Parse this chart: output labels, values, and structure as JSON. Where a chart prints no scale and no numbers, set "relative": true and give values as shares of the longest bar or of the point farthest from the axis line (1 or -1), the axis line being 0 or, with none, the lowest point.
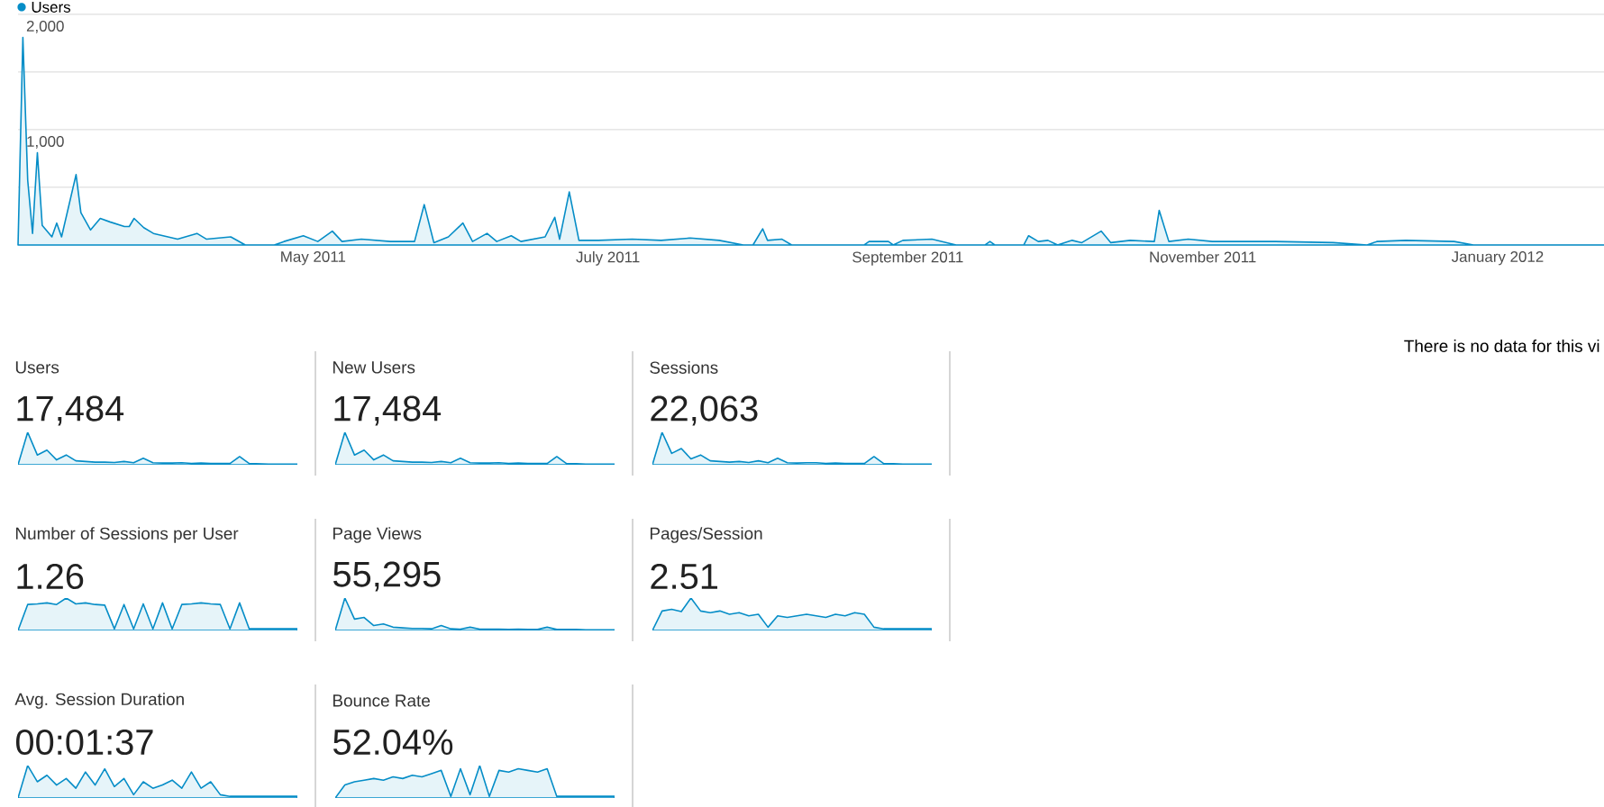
{
  "chart_data": [
    {
      "type": "area",
      "x": [
        "2011-03-01",
        "2011-03-02",
        "2011-03-03",
        "2011-03-04",
        "2011-03-05",
        "2011-03-06",
        "2011-03-08",
        "2011-03-09",
        "2011-03-10",
        "2011-03-13",
        "2011-03-14",
        "2011-03-16",
        "2011-03-18",
        "2011-03-20",
        "2011-03-23",
        "2011-03-24",
        "2011-03-25",
        "2011-03-27",
        "2011-03-29",
        "2011-04-03",
        "2011-04-07",
        "2011-04-09",
        "2011-04-14",
        "2011-04-17",
        "2011-04-23",
        "2011-04-25",
        "2011-04-29",
        "2011-05-02",
        "2011-05-05",
        "2011-05-07",
        "2011-05-11",
        "2011-05-17",
        "2011-05-22",
        "2011-05-24",
        "2011-05-26",
        "2011-05-29",
        "2011-06-01",
        "2011-06-03",
        "2011-06-06",
        "2011-06-08",
        "2011-06-11",
        "2011-06-13",
        "2011-06-18",
        "2011-06-20",
        "2011-06-21",
        "2011-06-23",
        "2011-06-25",
        "2011-06-29",
        "2011-07-06",
        "2011-07-12",
        "2011-07-18",
        "2011-07-24",
        "2011-07-29",
        "2011-07-31",
        "2011-08-02",
        "2011-08-03",
        "2011-08-06",
        "2011-08-08",
        "2011-08-23",
        "2011-08-24",
        "2011-08-28",
        "2011-08-29",
        "2011-08-31",
        "2011-09-06",
        "2011-09-11",
        "2011-09-17",
        "2011-09-18",
        "2011-09-19",
        "2011-09-25",
        "2011-09-26",
        "2011-09-28",
        "2011-09-30",
        "2011-10-02",
        "2011-10-05",
        "2011-10-07",
        "2011-10-11",
        "2011-10-13",
        "2011-10-17",
        "2011-10-22",
        "2011-10-23",
        "2011-10-25",
        "2011-10-29",
        "2011-11-03",
        "2011-11-16",
        "2011-11-28",
        "2011-12-05",
        "2011-12-07",
        "2011-12-13",
        "2011-12-23",
        "2011-12-27",
        "2012-01-23"
      ],
      "series": [
        {
          "name": "Users",
          "color": "#058dc7",
          "values": [
            0,
            1800,
            560,
            100,
            800,
            170,
            70,
            190,
            70,
            610,
            280,
            130,
            230,
            200,
            160,
            160,
            230,
            150,
            100,
            50,
            100,
            50,
            70,
            0,
            0,
            30,
            80,
            30,
            120,
            30,
            50,
            30,
            30,
            350,
            20,
            70,
            190,
            30,
            100,
            30,
            80,
            30,
            70,
            240,
            50,
            460,
            40,
            40,
            50,
            40,
            60,
            40,
            0,
            0,
            140,
            40,
            50,
            0,
            0,
            30,
            30,
            0,
            40,
            50,
            0,
            0,
            30,
            0,
            0,
            80,
            30,
            40,
            0,
            40,
            20,
            120,
            20,
            40,
            30,
            300,
            30,
            50,
            30,
            30,
            20,
            0,
            30,
            40,
            30,
            0,
            0
          ]
        }
      ],
      "xlim": [
        "2011-03-01",
        "2012-01-23"
      ],
      "xticks": [
        {
          "value": "2011-05-01",
          "label": "May 2011"
        },
        {
          "value": "2011-07-01",
          "label": "July 2011"
        },
        {
          "value": "2011-09-01",
          "label": "September 2011"
        },
        {
          "value": "2011-11-01",
          "label": "November 2011"
        },
        {
          "value": "2012-01-01",
          "label": "January 2012"
        }
      ],
      "ylim": [
        0,
        2000
      ],
      "yticks": [
        {
          "value": 0,
          "label": null
        },
        {
          "value": 500,
          "label": null
        },
        {
          "value": 1000,
          "label": "1,000"
        },
        {
          "value": 1500,
          "label": null
        },
        {
          "value": 2000,
          "label": "2,000"
        }
      ],
      "grid": "y",
      "legend": "top left",
      "annotations": [
        "There is no data for this vi"
      ]
    },
    {
      "type": "area",
      "title": "Users",
      "subtitle": "17,484",
      "relative": true,
      "categories": [
        null,
        null,
        null,
        null,
        null,
        null,
        null,
        null,
        null,
        null,
        null,
        null,
        null,
        null,
        null,
        null,
        null,
        null,
        null,
        null,
        null,
        null,
        null,
        null,
        null,
        null,
        null,
        null,
        null,
        null
      ],
      "series": [
        {
          "color": "#058dc7",
          "values": [
            0,
            1,
            0.3,
            0.45,
            0.15,
            0.3,
            0.12,
            0.1,
            0.08,
            0.08,
            0.07,
            0.1,
            0.06,
            0.2,
            0.06,
            0.05,
            0.05,
            0.06,
            0.04,
            0.05,
            0.04,
            0.04,
            0.04,
            0.25,
            0.04,
            0.03,
            0.02,
            0.02,
            0.02,
            0.02
          ]
        }
      ]
    },
    {
      "type": "area",
      "title": "New Users",
      "subtitle": "17,484",
      "relative": true,
      "categories": [
        null,
        null,
        null,
        null,
        null,
        null,
        null,
        null,
        null,
        null,
        null,
        null,
        null,
        null,
        null,
        null,
        null,
        null,
        null,
        null,
        null,
        null,
        null,
        null,
        null,
        null,
        null,
        null,
        null,
        null
      ],
      "series": [
        {
          "color": "#058dc7",
          "values": [
            0,
            1,
            0.3,
            0.45,
            0.15,
            0.3,
            0.12,
            0.1,
            0.08,
            0.08,
            0.07,
            0.1,
            0.06,
            0.2,
            0.06,
            0.05,
            0.05,
            0.06,
            0.04,
            0.05,
            0.04,
            0.04,
            0.04,
            0.25,
            0.04,
            0.03,
            0.02,
            0.02,
            0.02,
            0.02
          ]
        }
      ]
    },
    {
      "type": "area",
      "title": "Sessions",
      "subtitle": "22,063",
      "relative": true,
      "categories": [
        null,
        null,
        null,
        null,
        null,
        null,
        null,
        null,
        null,
        null,
        null,
        null,
        null,
        null,
        null,
        null,
        null,
        null,
        null,
        null,
        null,
        null,
        null,
        null,
        null,
        null,
        null,
        null,
        null,
        null
      ],
      "series": [
        {
          "color": "#058dc7",
          "values": [
            0,
            1,
            0.35,
            0.5,
            0.18,
            0.3,
            0.12,
            0.1,
            0.08,
            0.1,
            0.07,
            0.12,
            0.06,
            0.2,
            0.06,
            0.05,
            0.06,
            0.06,
            0.04,
            0.05,
            0.04,
            0.04,
            0.04,
            0.25,
            0.04,
            0.03,
            0.02,
            0.02,
            0.02,
            0.02
          ]
        }
      ]
    },
    {
      "type": "area",
      "title": "Number of Sessions per User",
      "subtitle": "1.26",
      "relative": true,
      "categories": [
        null,
        null,
        null,
        null,
        null,
        null,
        null,
        null,
        null,
        null,
        null,
        null,
        null,
        null,
        null,
        null,
        null,
        null,
        null,
        null,
        null,
        null,
        null,
        null,
        null,
        null,
        null,
        null,
        null,
        null
      ],
      "series": [
        {
          "color": "#058dc7",
          "values": [
            0,
            0.8,
            0.82,
            0.85,
            0.8,
            1,
            0.82,
            0.85,
            0.8,
            0.78,
            0.05,
            0.8,
            0.05,
            0.82,
            0.05,
            0.85,
            0.05,
            0.8,
            0.82,
            0.85,
            0.82,
            0.8,
            0.05,
            0.85,
            0.05,
            0.05,
            0.05,
            0.05,
            0.05,
            0.05
          ]
        }
      ]
    },
    {
      "type": "area",
      "title": "Page Views",
      "subtitle": "55,295",
      "relative": true,
      "categories": [
        null,
        null,
        null,
        null,
        null,
        null,
        null,
        null,
        null,
        null,
        null,
        null,
        null,
        null,
        null,
        null,
        null,
        null,
        null,
        null,
        null,
        null,
        null,
        null,
        null,
        null,
        null,
        null,
        null,
        null
      ],
      "series": [
        {
          "color": "#058dc7",
          "values": [
            0,
            1,
            0.35,
            0.4,
            0.15,
            0.2,
            0.1,
            0.08,
            0.06,
            0.06,
            0.05,
            0.15,
            0.05,
            0.04,
            0.1,
            0.04,
            0.04,
            0.04,
            0.03,
            0.04,
            0.03,
            0.03,
            0.1,
            0.03,
            0.03,
            0.03,
            0.02,
            0.02,
            0.02,
            0.02
          ]
        }
      ]
    },
    {
      "type": "area",
      "title": "Pages/Session",
      "subtitle": "2.51",
      "relative": true,
      "categories": [
        null,
        null,
        null,
        null,
        null,
        null,
        null,
        null,
        null,
        null,
        null,
        null,
        null,
        null,
        null,
        null,
        null,
        null,
        null,
        null,
        null,
        null,
        null,
        null,
        null,
        null,
        null,
        null,
        null,
        null
      ],
      "series": [
        {
          "color": "#058dc7",
          "values": [
            0,
            0.6,
            0.65,
            0.58,
            1,
            0.6,
            0.55,
            0.6,
            0.5,
            0.55,
            0.45,
            0.5,
            0.1,
            0.45,
            0.4,
            0.45,
            0.5,
            0.45,
            0.4,
            0.5,
            0.45,
            0.55,
            0.5,
            0.1,
            0.05,
            0.05,
            0.05,
            0.05,
            0.05,
            0.05
          ]
        }
      ]
    },
    {
      "type": "area",
      "title": "Avg. Session Duration",
      "subtitle": "00:01:37",
      "relative": true,
      "categories": [
        null,
        null,
        null,
        null,
        null,
        null,
        null,
        null,
        null,
        null,
        null,
        null,
        null,
        null,
        null,
        null,
        null,
        null,
        null,
        null,
        null,
        null,
        null,
        null,
        null,
        null,
        null,
        null,
        null,
        null
      ],
      "series": [
        {
          "color": "#058dc7",
          "values": [
            0,
            1,
            0.5,
            0.7,
            0.4,
            0.6,
            0.3,
            0.8,
            0.4,
            0.9,
            0.35,
            0.6,
            0.1,
            0.5,
            0.3,
            0.4,
            0.55,
            0.3,
            0.8,
            0.3,
            0.5,
            0.1,
            0.05,
            0.05,
            0.05,
            0.05,
            0.05,
            0.05,
            0.05,
            0.05
          ]
        }
      ]
    },
    {
      "type": "area",
      "title": "Bounce Rate",
      "subtitle": "52.04%",
      "relative": true,
      "categories": [
        null,
        null,
        null,
        null,
        null,
        null,
        null,
        null,
        null,
        null,
        null,
        null,
        null,
        null,
        null,
        null,
        null,
        null,
        null,
        null,
        null,
        null,
        null,
        null,
        null,
        null,
        null,
        null,
        null,
        null
      ],
      "series": [
        {
          "color": "#058dc7",
          "values": [
            0,
            0.4,
            0.5,
            0.55,
            0.6,
            0.55,
            0.65,
            0.6,
            0.7,
            0.65,
            0.75,
            0.85,
            0.05,
            0.9,
            0.1,
            1,
            0.05,
            0.85,
            0.8,
            0.9,
            0.85,
            0.8,
            0.9,
            0.05,
            0.05,
            0.05,
            0.05,
            0.05,
            0.05,
            0.05
          ]
        }
      ]
    }
  ]
}
